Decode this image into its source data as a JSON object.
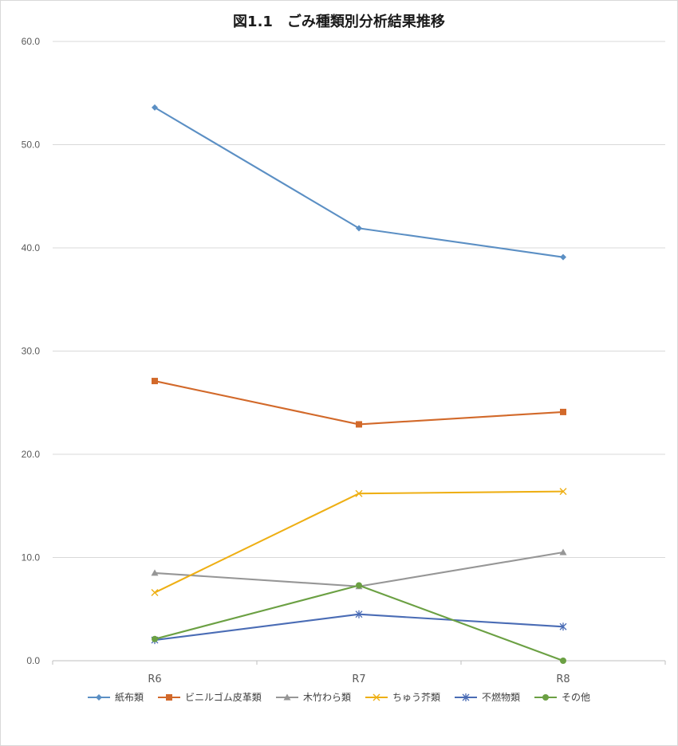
{
  "chart_data": {
    "type": "line",
    "title": "図1.1　ごみ種類別分析結果推移",
    "xlabel": "",
    "ylabel": "",
    "categories": [
      "R6",
      "R7",
      "R8"
    ],
    "ylim": [
      0,
      60
    ],
    "yticks": [
      "0.0",
      "10.0",
      "20.0",
      "30.0",
      "40.0",
      "50.0",
      "60.0"
    ],
    "grid": true,
    "legend_position": "bottom",
    "series": [
      {
        "name": "紙布類",
        "values": [
          53.6,
          41.9,
          39.1
        ],
        "color": "#5b8fc4",
        "marker": "diamond"
      },
      {
        "name": "ビニルゴム皮革類",
        "values": [
          27.1,
          22.9,
          24.1
        ],
        "color": "#d2692a",
        "marker": "square"
      },
      {
        "name": "木竹わら類",
        "values": [
          8.5,
          7.2,
          10.5
        ],
        "color": "#969696",
        "marker": "triangle"
      },
      {
        "name": "ちゅう芥類",
        "values": [
          6.6,
          16.2,
          16.4
        ],
        "color": "#eeaf14",
        "marker": "x"
      },
      {
        "name": "不燃物類",
        "values": [
          2.0,
          4.5,
          3.3
        ],
        "color": "#4a6cb5",
        "marker": "star"
      },
      {
        "name": "その他",
        "values": [
          2.1,
          7.3,
          0.0
        ],
        "color": "#6ba043",
        "marker": "circle"
      }
    ]
  }
}
